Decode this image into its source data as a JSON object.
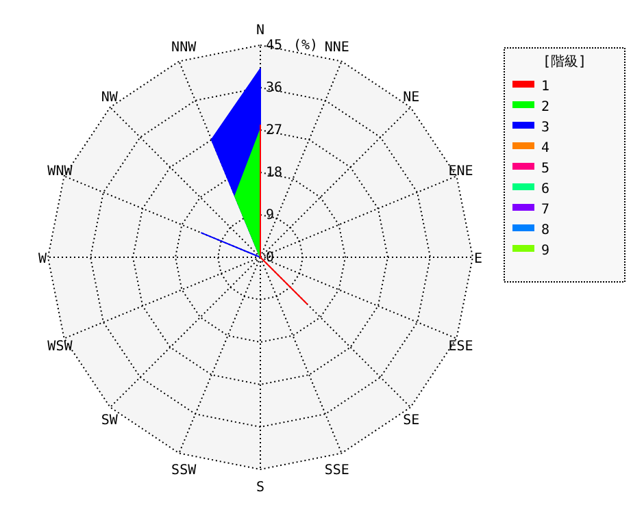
{
  "chart_data": {
    "type": "radar",
    "ylabel": "(%)",
    "legend_title": "[階級]",
    "legend": "right",
    "grid": true,
    "line_style": "solid",
    "marker": "none",
    "categories": [
      "N",
      "NNE",
      "NE",
      "ENE",
      "E",
      "ESE",
      "SE",
      "SSE",
      "S",
      "SSW",
      "SW",
      "WSW",
      "W",
      "WNW",
      "NW",
      "NNW"
    ],
    "ylim": [
      0,
      45
    ],
    "yticks": [
      0,
      9,
      18,
      27,
      36,
      45
    ],
    "series": [
      {
        "name": "1",
        "color": "#ff0000",
        "values": [
          28,
          0,
          0,
          0,
          0,
          0,
          14,
          0,
          0,
          0,
          0,
          0,
          0,
          0,
          0,
          0
        ]
      },
      {
        "name": "2",
        "color": "#00ff00",
        "values": [
          27,
          0,
          0,
          0,
          0,
          0,
          0,
          0,
          0,
          0,
          0,
          0,
          0,
          0,
          0,
          14
        ]
      },
      {
        "name": "3",
        "color": "#0000ff",
        "values": [
          40,
          0,
          0,
          0,
          0,
          0,
          0,
          0,
          0,
          0,
          0,
          0,
          0,
          13.5,
          0,
          27
        ]
      },
      {
        "name": "4",
        "color": "#ff8000",
        "values": [
          null,
          null,
          null,
          null,
          null,
          null,
          null,
          null,
          null,
          null,
          null,
          null,
          null,
          null,
          null,
          null
        ]
      },
      {
        "name": "5",
        "color": "#ff0080",
        "values": [
          null,
          null,
          null,
          null,
          null,
          null,
          null,
          null,
          null,
          null,
          null,
          null,
          null,
          null,
          null,
          null
        ]
      },
      {
        "name": "6",
        "color": "#00ff80",
        "values": [
          null,
          null,
          null,
          null,
          null,
          null,
          null,
          null,
          null,
          null,
          null,
          null,
          null,
          null,
          null,
          null
        ]
      },
      {
        "name": "7",
        "color": "#8000ff",
        "values": [
          null,
          null,
          null,
          null,
          null,
          null,
          null,
          null,
          null,
          null,
          null,
          null,
          null,
          null,
          null,
          null
        ]
      },
      {
        "name": "8",
        "color": "#0080ff",
        "values": [
          null,
          null,
          null,
          null,
          null,
          null,
          null,
          null,
          null,
          null,
          null,
          null,
          null,
          null,
          null,
          null
        ]
      },
      {
        "name": "9",
        "color": "#80ff00",
        "values": [
          null,
          null,
          null,
          null,
          null,
          null,
          null,
          null,
          null,
          null,
          null,
          null,
          null,
          null,
          null,
          null
        ]
      }
    ]
  }
}
